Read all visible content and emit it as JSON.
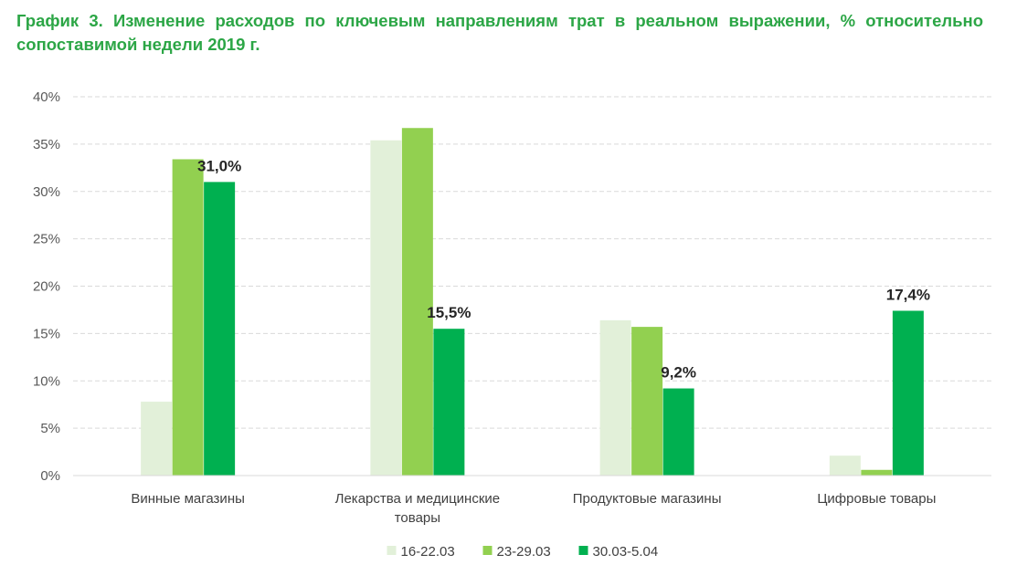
{
  "chart_data": {
    "type": "bar",
    "title": "График 3. Изменение расходов по ключевым направлениям трат в реальном выражении, % относительно сопоставимой недели 2019 г.",
    "categories": [
      [
        "Винные магазины"
      ],
      [
        "Лекарства и медицинские",
        "товары"
      ],
      [
        "Продуктовые магазины"
      ],
      [
        "Цифровые товары"
      ]
    ],
    "series": [
      {
        "name": "16-22.03",
        "color": "#e2f0d9",
        "values": [
          7.8,
          35.4,
          16.4,
          2.1
        ]
      },
      {
        "name": "23-29.03",
        "color": "#92d050",
        "values": [
          33.4,
          36.7,
          15.7,
          0.6
        ]
      },
      {
        "name": "30.03-5.04",
        "color": "#00b050",
        "values": [
          31.0,
          15.5,
          9.2,
          17.4
        ]
      }
    ],
    "data_labels": {
      "series_index": 2,
      "texts": [
        "31,0%",
        "15,5%",
        "9,2%",
        "17,4%"
      ]
    },
    "ylim": [
      0,
      40
    ],
    "yticks": [
      0,
      5,
      10,
      15,
      20,
      25,
      30,
      35,
      40
    ],
    "ytick_labels": [
      "0%",
      "5%",
      "10%",
      "15%",
      "20%",
      "25%",
      "30%",
      "35%",
      "40%"
    ],
    "grid": true,
    "legend_position": "bottom"
  }
}
